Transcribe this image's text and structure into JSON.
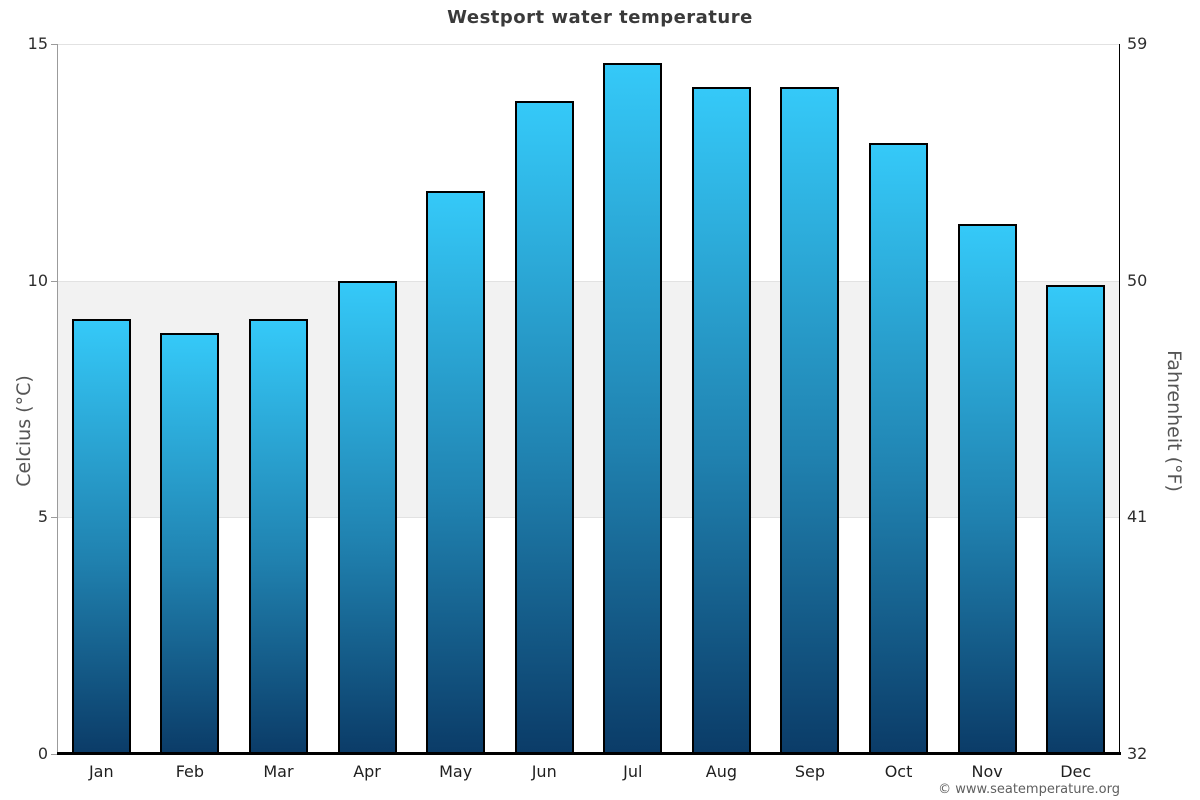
{
  "title": "Westport water temperature",
  "copyright": "© www.seatemperature.org",
  "axes": {
    "left": {
      "title": "Celcius (°C)",
      "tick_labels": [
        "15",
        "10",
        "5",
        "0"
      ]
    },
    "right": {
      "title": "Fahrenheit (°F)",
      "tick_labels": [
        "59",
        "50",
        "41",
        "32"
      ]
    }
  },
  "chart_data": {
    "type": "bar",
    "title": "Westport water temperature",
    "categories": [
      "Jan",
      "Feb",
      "Mar",
      "Apr",
      "May",
      "Jun",
      "Jul",
      "Aug",
      "Sep",
      "Oct",
      "Nov",
      "Dec"
    ],
    "values": [
      9.2,
      8.9,
      9.2,
      10.0,
      11.9,
      13.8,
      14.6,
      14.1,
      14.1,
      12.9,
      11.2,
      9.9
    ],
    "xlabel": "",
    "ylabel_left": "Celcius (°C)",
    "ylabel_right": "Fahrenheit (°F)",
    "ylim": [
      0,
      15
    ],
    "yticks_left": [
      0,
      5,
      10,
      15
    ],
    "yticks_right": [
      32,
      41,
      50,
      59
    ],
    "shaded_band_celsius": [
      5,
      10
    ],
    "legend": "none",
    "grid": "horizontal lines at ticks, gray band between 5 and 10 °C",
    "colors": {
      "bar_gradient_top": "#35c9f8",
      "bar_gradient_bottom": "#0b3c68",
      "bar_border": "#000000",
      "band": "#f2f2f2",
      "gridline": "#e2e2e2",
      "title_text": "#3a3a3a"
    }
  }
}
